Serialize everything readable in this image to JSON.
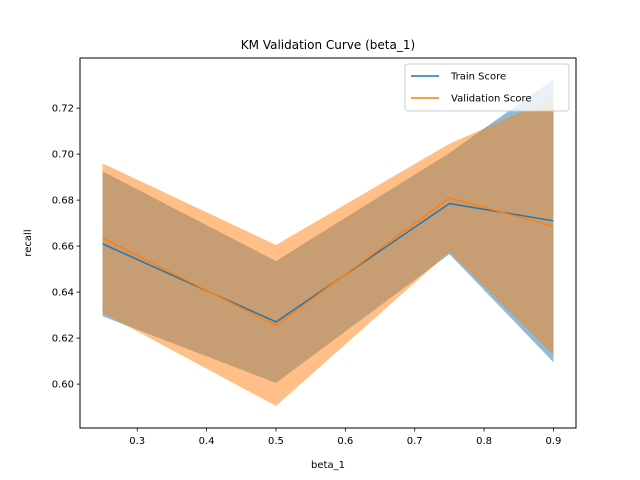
{
  "chart_data": {
    "type": "line",
    "title": "KM Validation Curve (beta_1)",
    "xlabel": "beta_1",
    "ylabel": "recall",
    "x": [
      0.25,
      0.5,
      0.75,
      0.9
    ],
    "xlim": [
      0.2175,
      0.9325
    ],
    "ylim": [
      0.5809,
      0.7418
    ],
    "xticks": [
      0.3,
      0.4,
      0.5,
      0.6,
      0.7,
      0.8,
      0.9
    ],
    "xtick_labels": [
      "0.3",
      "0.4",
      "0.5",
      "0.6",
      "0.7",
      "0.8",
      "0.9"
    ],
    "yticks": [
      0.6,
      0.62,
      0.64,
      0.66,
      0.68,
      0.7,
      0.72
    ],
    "ytick_labels": [
      "0.60",
      "0.62",
      "0.64",
      "0.66",
      "0.68",
      "0.70",
      "0.72"
    ],
    "grid": false,
    "legend_position": "top-right",
    "series": [
      {
        "name": "Train Score",
        "color": "#1f77b4",
        "band_color": "#1f77b4",
        "values": [
          0.661,
          0.627,
          0.6785,
          0.671
        ],
        "lower": [
          0.6295,
          0.6005,
          0.6565,
          0.6095
        ],
        "upper": [
          0.6925,
          0.6535,
          0.7005,
          0.7325
        ]
      },
      {
        "name": "Validation Score",
        "color": "#ff7f0e",
        "band_color": "#ff7f0e",
        "values": [
          0.6635,
          0.6255,
          0.681,
          0.6685
        ],
        "lower": [
          0.631,
          0.5905,
          0.6575,
          0.6125
        ],
        "upper": [
          0.696,
          0.6605,
          0.7045,
          0.7245
        ]
      }
    ]
  }
}
